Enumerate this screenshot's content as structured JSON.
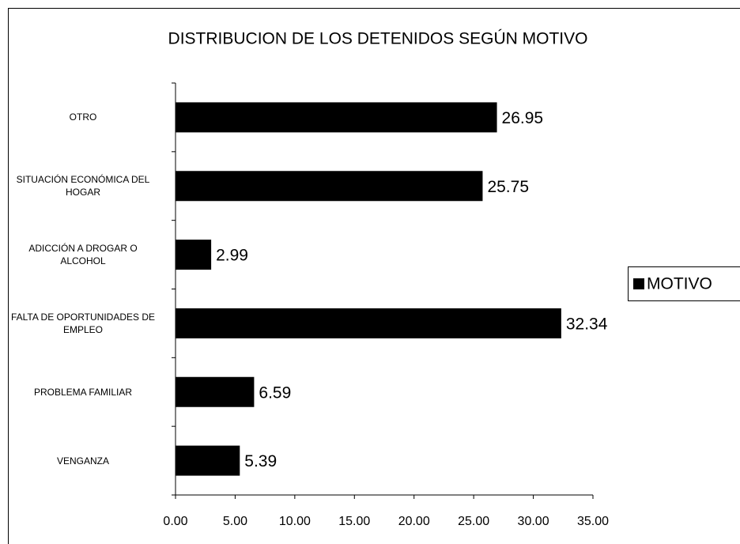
{
  "chart_data": {
    "type": "barh",
    "title": "DISTRIBUCION  DE LOS DETENIDOS SEGÚN MOTIVO",
    "categories": [
      "OTRO",
      "SITUACIÓN ECONÓMICA DEL HOGAR",
      "ADICCIÓN A DROGAR O ALCOHOL",
      "FALTA DE OPORTUNIDADES DE EMPLEO",
      "PROBLEMA FAMILIAR",
      "VENGANZA"
    ],
    "series": [
      {
        "name": "MOTIVO",
        "color": "#000000",
        "values": [
          26.95,
          25.75,
          2.99,
          32.34,
          6.59,
          5.39
        ]
      }
    ],
    "xlim": [
      0,
      35
    ],
    "xticks": [
      {
        "value": 0,
        "label": "0.00"
      },
      {
        "value": 5,
        "label": "5.00"
      },
      {
        "value": 10,
        "label": "10.00"
      },
      {
        "value": 15,
        "label": "15.00"
      },
      {
        "value": 20,
        "label": "20.00"
      },
      {
        "value": 25,
        "label": "25.00"
      },
      {
        "value": 30,
        "label": "30.00"
      },
      {
        "value": 35,
        "label": "35.00"
      }
    ],
    "legend": "right"
  }
}
